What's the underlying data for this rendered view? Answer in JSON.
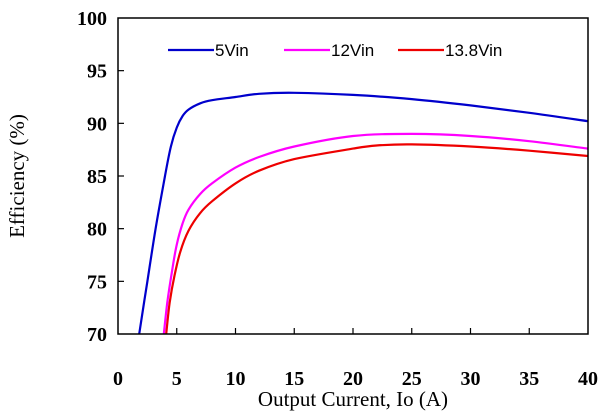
{
  "chart_data": {
    "type": "line",
    "xlabel": "Output Current, Io (A)",
    "ylabel": "Efficiency (%)",
    "xlim": [
      0,
      40
    ],
    "ylim": [
      70,
      100
    ],
    "xticks": [
      0,
      5,
      10,
      15,
      20,
      25,
      30,
      35,
      40
    ],
    "yticks": [
      70,
      75,
      80,
      85,
      90,
      95,
      100
    ],
    "grid": false,
    "legend": "top",
    "series": [
      {
        "name": "5Vin",
        "color": "#0000cc",
        "x": [
          1.8,
          2.5,
          3.2,
          4.0,
          4.5,
          5.0,
          5.5,
          6.0,
          7.0,
          8.0,
          10.0,
          12.0,
          15.0,
          20.0,
          25.0,
          30.0,
          35.0,
          40.0
        ],
        "y": [
          70.0,
          75.0,
          80.0,
          85.0,
          87.8,
          89.6,
          90.7,
          91.3,
          91.9,
          92.2,
          92.5,
          92.8,
          92.9,
          92.7,
          92.3,
          91.7,
          91.0,
          90.2
        ]
      },
      {
        "name": "12Vin",
        "color": "#ff00ff",
        "x": [
          3.9,
          4.2,
          4.6,
          5.0,
          5.5,
          6.0,
          7.0,
          8.0,
          10.0,
          12.0,
          15.0,
          20.0,
          25.0,
          30.0,
          35.0,
          40.0
        ],
        "y": [
          70.0,
          73.0,
          76.0,
          78.5,
          80.5,
          81.8,
          83.3,
          84.3,
          85.8,
          86.8,
          87.8,
          88.8,
          89.0,
          88.8,
          88.3,
          87.6
        ]
      },
      {
        "name": "13.8Vin",
        "color": "#ee0000",
        "x": [
          4.1,
          4.4,
          4.8,
          5.3,
          6.0,
          7.0,
          8.0,
          10.0,
          12.0,
          15.0,
          20.0,
          22.0,
          25.0,
          30.0,
          35.0,
          40.0
        ],
        "y": [
          70.0,
          73.0,
          75.5,
          77.8,
          79.8,
          81.5,
          82.6,
          84.3,
          85.5,
          86.6,
          87.6,
          87.9,
          88.0,
          87.8,
          87.4,
          86.9
        ]
      }
    ]
  }
}
